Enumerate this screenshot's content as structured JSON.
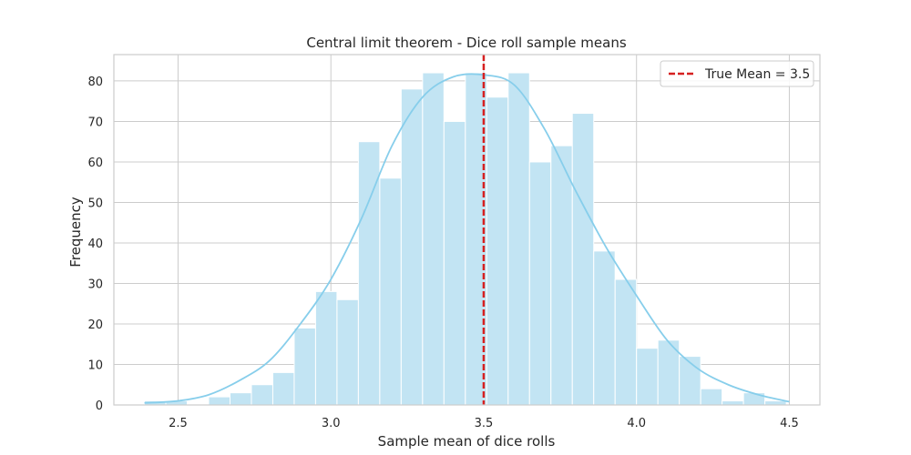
{
  "chart_data": {
    "type": "histogram",
    "title": "Central limit theorem - Dice roll sample means",
    "xlabel": "Sample mean of dice rolls",
    "ylabel": "Frequency",
    "xlim": [
      2.29,
      4.6
    ],
    "ylim": [
      0,
      86.5
    ],
    "xticks": [
      2.5,
      3.0,
      3.5,
      4.0,
      4.5
    ],
    "xtick_labels": [
      "2.5",
      "3.0",
      "3.5",
      "4.0",
      "4.5"
    ],
    "yticks": [
      0,
      10,
      20,
      30,
      40,
      50,
      60,
      70,
      80
    ],
    "yticks_labels": [
      "0",
      "10",
      "20",
      "30",
      "40",
      "50",
      "60",
      "70",
      "80"
    ],
    "grid": true,
    "bin_width": 0.07,
    "bin_start": 2.39,
    "bins": [
      {
        "x0": 2.39,
        "x1": 2.46,
        "count": 1
      },
      {
        "x0": 2.46,
        "x1": 2.53,
        "count": 1
      },
      {
        "x0": 2.53,
        "x1": 2.6,
        "count": 0
      },
      {
        "x0": 2.6,
        "x1": 2.67,
        "count": 2
      },
      {
        "x0": 2.67,
        "x1": 2.74,
        "count": 3
      },
      {
        "x0": 2.74,
        "x1": 2.81,
        "count": 5
      },
      {
        "x0": 2.81,
        "x1": 2.88,
        "count": 8
      },
      {
        "x0": 2.88,
        "x1": 2.95,
        "count": 19
      },
      {
        "x0": 2.95,
        "x1": 3.02,
        "count": 28
      },
      {
        "x0": 3.02,
        "x1": 3.09,
        "count": 26
      },
      {
        "x0": 3.09,
        "x1": 3.16,
        "count": 65
      },
      {
        "x0": 3.16,
        "x1": 3.23,
        "count": 56
      },
      {
        "x0": 3.23,
        "x1": 3.3,
        "count": 78
      },
      {
        "x0": 3.3,
        "x1": 3.37,
        "count": 82
      },
      {
        "x0": 3.37,
        "x1": 3.44,
        "count": 70
      },
      {
        "x0": 3.44,
        "x1": 3.51,
        "count": 82
      },
      {
        "x0": 3.51,
        "x1": 3.58,
        "count": 76
      },
      {
        "x0": 3.58,
        "x1": 3.65,
        "count": 82
      },
      {
        "x0": 3.65,
        "x1": 3.72,
        "count": 60
      },
      {
        "x0": 3.72,
        "x1": 3.79,
        "count": 64
      },
      {
        "x0": 3.79,
        "x1": 3.86,
        "count": 72
      },
      {
        "x0": 3.86,
        "x1": 3.93,
        "count": 38
      },
      {
        "x0": 3.93,
        "x1": 4.0,
        "count": 31
      },
      {
        "x0": 4.0,
        "x1": 4.07,
        "count": 14
      },
      {
        "x0": 4.07,
        "x1": 4.14,
        "count": 16
      },
      {
        "x0": 4.14,
        "x1": 4.21,
        "count": 12
      },
      {
        "x0": 4.21,
        "x1": 4.28,
        "count": 4
      },
      {
        "x0": 4.28,
        "x1": 4.35,
        "count": 1
      },
      {
        "x0": 4.35,
        "x1": 4.42,
        "count": 3
      },
      {
        "x0": 4.42,
        "x1": 4.49,
        "count": 1
      }
    ],
    "kde_curve": {
      "x": [
        2.39,
        2.5,
        2.6,
        2.7,
        2.8,
        2.9,
        3.0,
        3.1,
        3.2,
        3.3,
        3.4,
        3.5,
        3.6,
        3.7,
        3.8,
        3.9,
        4.0,
        4.1,
        4.2,
        4.3,
        4.4,
        4.5
      ],
      "y": [
        0.5,
        1,
        2.5,
        6,
        11,
        20,
        31,
        46,
        64,
        76,
        81,
        81.5,
        79,
        68,
        53,
        39,
        27,
        16,
        9,
        5,
        2.5,
        0.8
      ]
    },
    "reference_line": {
      "x": 3.5,
      "label": "True Mean = 3.5",
      "style": "dashed"
    },
    "legend": {
      "placement": "top-right",
      "entries": [
        "True Mean = 3.5"
      ]
    },
    "colors": {
      "bar_fill": "#c2e4f3",
      "bar_edge": "#ffffff",
      "kde_line": "#87ceeb",
      "mean_line": "#d62020",
      "grid": "#cccccc",
      "frame": "#cccccc"
    }
  }
}
